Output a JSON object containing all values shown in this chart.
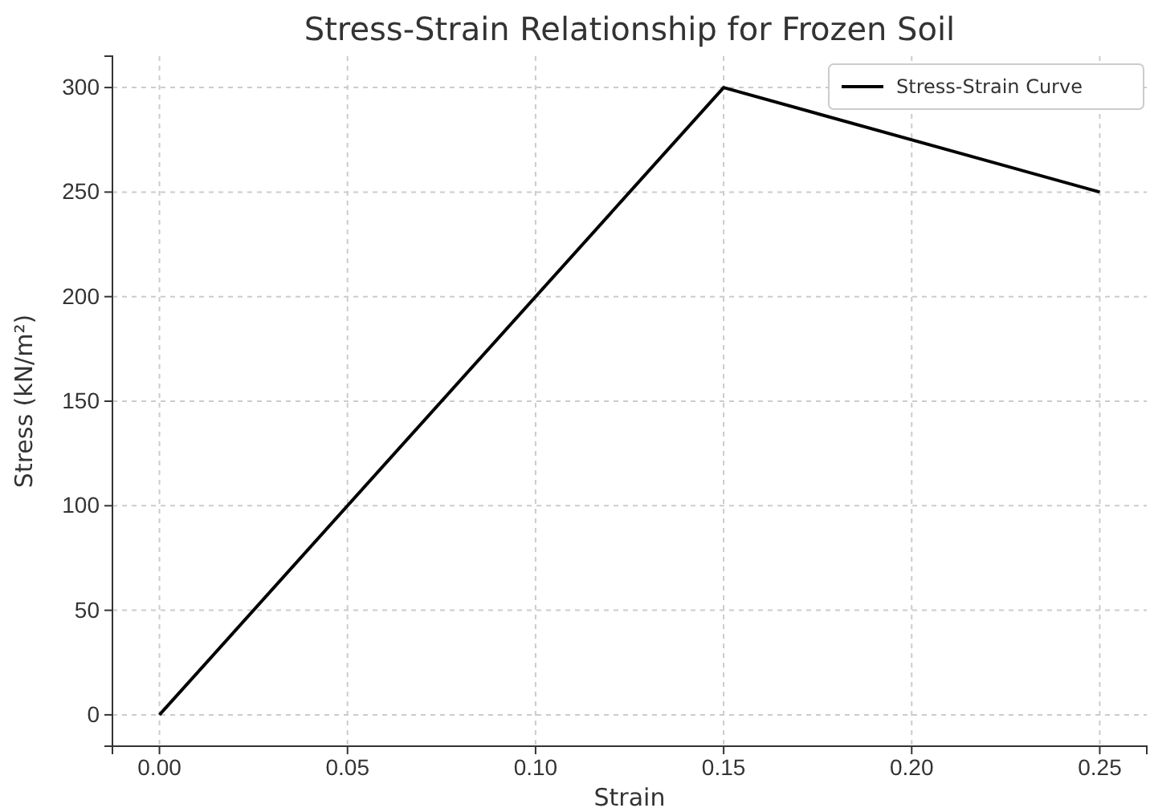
{
  "chart_data": {
    "type": "line",
    "title": "Stress-Strain Relationship for Frozen Soil",
    "xlabel": "Strain",
    "ylabel": "Stress (kN/m²)",
    "x": [
      0,
      0.15,
      0.25
    ],
    "series": [
      {
        "name": "Stress-Strain Curve",
        "color": "#000000",
        "values": [
          0,
          300,
          250
        ]
      }
    ],
    "xlim": [
      -0.0125,
      0.2625
    ],
    "xticks": [
      {
        "value": 0,
        "label": "0.00"
      },
      {
        "value": 0.05,
        "label": "0.05"
      },
      {
        "value": 0.1,
        "label": "0.10"
      },
      {
        "value": 0.15,
        "label": "0.15"
      },
      {
        "value": 0.2,
        "label": "0.20"
      },
      {
        "value": 0.25,
        "label": "0.25"
      }
    ],
    "ylim": [
      -15,
      315
    ],
    "yticks": [
      0,
      50,
      100,
      150,
      200,
      250,
      300
    ],
    "grid": true,
    "legend": "top right",
    "marker": "none",
    "line_style": "solid"
  }
}
